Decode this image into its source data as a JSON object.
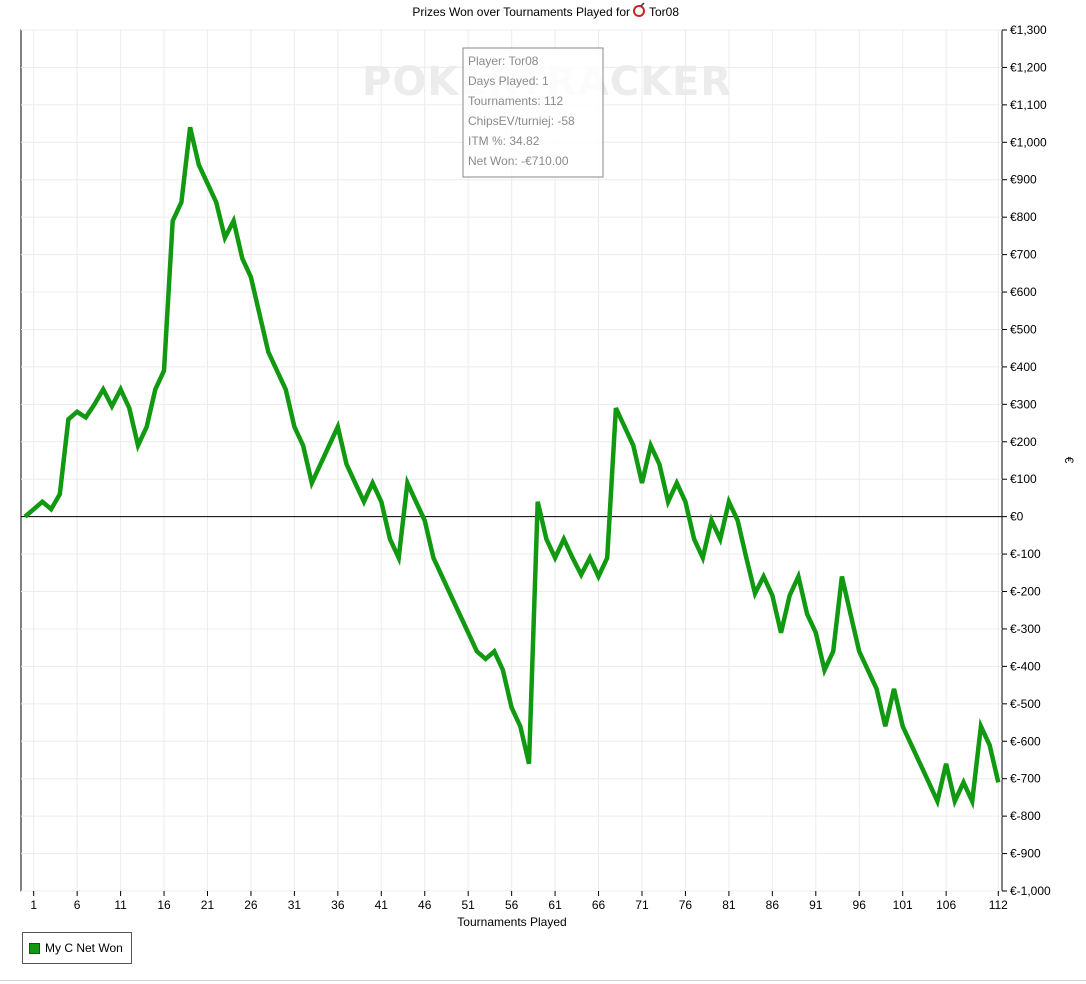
{
  "chart_data": {
    "type": "line",
    "title_prefix": "Prizes Won over Tournaments Played for",
    "player_name": "Tor08",
    "title_icon": "poker-site-icon",
    "xlabel": "Tournaments Played",
    "ylabel": "€",
    "xlim": [
      1,
      112
    ],
    "ylim": [
      -1000,
      1300
    ],
    "x_tick_labels": [
      "1",
      "6",
      "11",
      "16",
      "21",
      "26",
      "31",
      "36",
      "41",
      "46",
      "51",
      "56",
      "61",
      "66",
      "71",
      "76",
      "81",
      "86",
      "91",
      "96",
      "101",
      "106",
      "112"
    ],
    "y_tick_labels": [
      "€1,300",
      "€1,200",
      "€1,100",
      "€1,000",
      "€900",
      "€800",
      "€700",
      "€600",
      "€500",
      "€400",
      "€300",
      "€200",
      "€100",
      "€0",
      "€-100",
      "€-200",
      "€-300",
      "€-400",
      "€-500",
      "€-600",
      "€-700",
      "€-800",
      "€-900",
      "€-1,000"
    ],
    "grid": true,
    "zero_line": true,
    "series": [
      {
        "name": "My C Net Won",
        "color": "#119911",
        "x": [
          0,
          1,
          2,
          3,
          4,
          5,
          6,
          7,
          8,
          9,
          10,
          11,
          12,
          13,
          14,
          15,
          16,
          17,
          18,
          19,
          20,
          21,
          22,
          23,
          24,
          25,
          26,
          27,
          28,
          29,
          30,
          31,
          32,
          33,
          34,
          35,
          36,
          37,
          38,
          39,
          40,
          41,
          42,
          43,
          44,
          45,
          46,
          47,
          48,
          49,
          50,
          51,
          52,
          53,
          54,
          55,
          56,
          57,
          58,
          59,
          60,
          61,
          62,
          63,
          64,
          65,
          66,
          67,
          68,
          69,
          70,
          71,
          72,
          73,
          74,
          75,
          76,
          77,
          78,
          79,
          80,
          81,
          82,
          83,
          84,
          85,
          86,
          87,
          88,
          89,
          90,
          91,
          92,
          93,
          94,
          95,
          96,
          97,
          98,
          99,
          100,
          101,
          102,
          103,
          104,
          105,
          106,
          107,
          108,
          109,
          110,
          111,
          112
        ],
        "y": [
          0,
          20,
          40,
          20,
          60,
          260,
          280,
          265,
          300,
          340,
          295,
          340,
          290,
          190,
          240,
          340,
          390,
          790,
          840,
          1040,
          940,
          890,
          840,
          745,
          790,
          690,
          640,
          540,
          440,
          390,
          340,
          240,
          190,
          90,
          140,
          190,
          240,
          140,
          90,
          40,
          90,
          40,
          -60,
          -110,
          90,
          40,
          -10,
          -110,
          -160,
          -210,
          -260,
          -310,
          -360,
          -380,
          -360,
          -410,
          -510,
          -560,
          -660,
          40,
          -60,
          -110,
          -60,
          -110,
          -155,
          -110,
          -160,
          -110,
          290,
          240,
          190,
          90,
          190,
          140,
          40,
          90,
          40,
          -60,
          -110,
          -10,
          -60,
          40,
          -10,
          -110,
          -205,
          -160,
          -210,
          -310,
          -210,
          -160,
          -260,
          -310,
          -410,
          -360,
          -160,
          -260,
          -360,
          -410,
          -460,
          -560,
          -460,
          -560,
          -610,
          -660,
          -710,
          -760,
          -660,
          -760,
          -710,
          -760,
          -560,
          -610,
          -710
        ]
      }
    ],
    "legend": {
      "label": "My C Net Won",
      "position": "bottom-left"
    }
  },
  "info_box": {
    "player": "Player: Tor08",
    "days_played": "Days Played: 1",
    "tournaments": "Tournaments: 112",
    "chips_ev": "ChipsEV/turniej: -58",
    "itm": "ITM %: 34.82",
    "net_won": "Net Won: -€710.00"
  },
  "watermark": "POKERTRACKER"
}
